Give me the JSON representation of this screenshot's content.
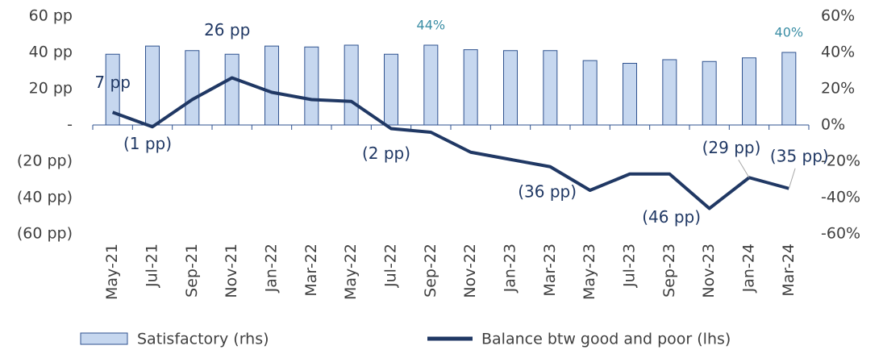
{
  "chart_data": {
    "type": "bar-line",
    "categories": [
      "May-21",
      "Jul-21",
      "Sep-21",
      "Nov-21",
      "Jan-22",
      "Mar-22",
      "May-22",
      "Jul-22",
      "Sep-22",
      "Nov-22",
      "Jan-23",
      "Mar-23",
      "May-23",
      "Jul-23",
      "Sep-23",
      "Nov-23",
      "Jan-24",
      "Mar-24"
    ],
    "series": [
      {
        "name": "Satisfactory (rhs)",
        "type": "bar",
        "axis": "y2",
        "color": "#c6d7ef",
        "edge": "#2f528f",
        "values": [
          39,
          43.5,
          41,
          39,
          43.5,
          43,
          44,
          39,
          44,
          41.5,
          41,
          41,
          35.5,
          34,
          36,
          35,
          37,
          40
        ],
        "value_labels": [
          null,
          null,
          null,
          null,
          null,
          null,
          null,
          null,
          "44%",
          null,
          null,
          null,
          null,
          null,
          null,
          null,
          null,
          "40%"
        ]
      },
      {
        "name": "Balance btw good and poor (lhs)",
        "type": "line",
        "axis": "y",
        "color": "#203864",
        "values": [
          7,
          -1,
          14,
          26,
          18,
          14,
          13,
          -2,
          -4,
          -15,
          -19,
          -23,
          -36,
          -27,
          -27,
          -46,
          -29,
          -35
        ],
        "value_labels": [
          "7 pp",
          "(1 pp)",
          null,
          "26 pp",
          null,
          null,
          null,
          "(2 pp)",
          null,
          null,
          null,
          null,
          "(36 pp)",
          null,
          null,
          "(46 pp)",
          "(29 pp)",
          "(35 pp)"
        ]
      }
    ],
    "ylim": [
      -60,
      60
    ],
    "yticks": [
      {
        "value": 60,
        "label": "60 pp"
      },
      {
        "value": 40,
        "label": "40 pp"
      },
      {
        "value": 20,
        "label": "20 pp"
      },
      {
        "value": 0,
        "label": "-"
      },
      {
        "value": -20,
        "label": "(20 pp)"
      },
      {
        "value": -40,
        "label": "(40 pp)"
      },
      {
        "value": -60,
        "label": "(60 pp)"
      }
    ],
    "y2lim": [
      -60,
      60
    ],
    "y2ticks": [
      {
        "value": 60,
        "label": "60%"
      },
      {
        "value": 40,
        "label": "40%"
      },
      {
        "value": 20,
        "label": "20%"
      },
      {
        "value": 0,
        "label": "0%"
      },
      {
        "value": -20,
        "label": "-20%"
      },
      {
        "value": -40,
        "label": "-40%"
      },
      {
        "value": -60,
        "label": "-60%"
      }
    ],
    "legend": "bottom"
  }
}
